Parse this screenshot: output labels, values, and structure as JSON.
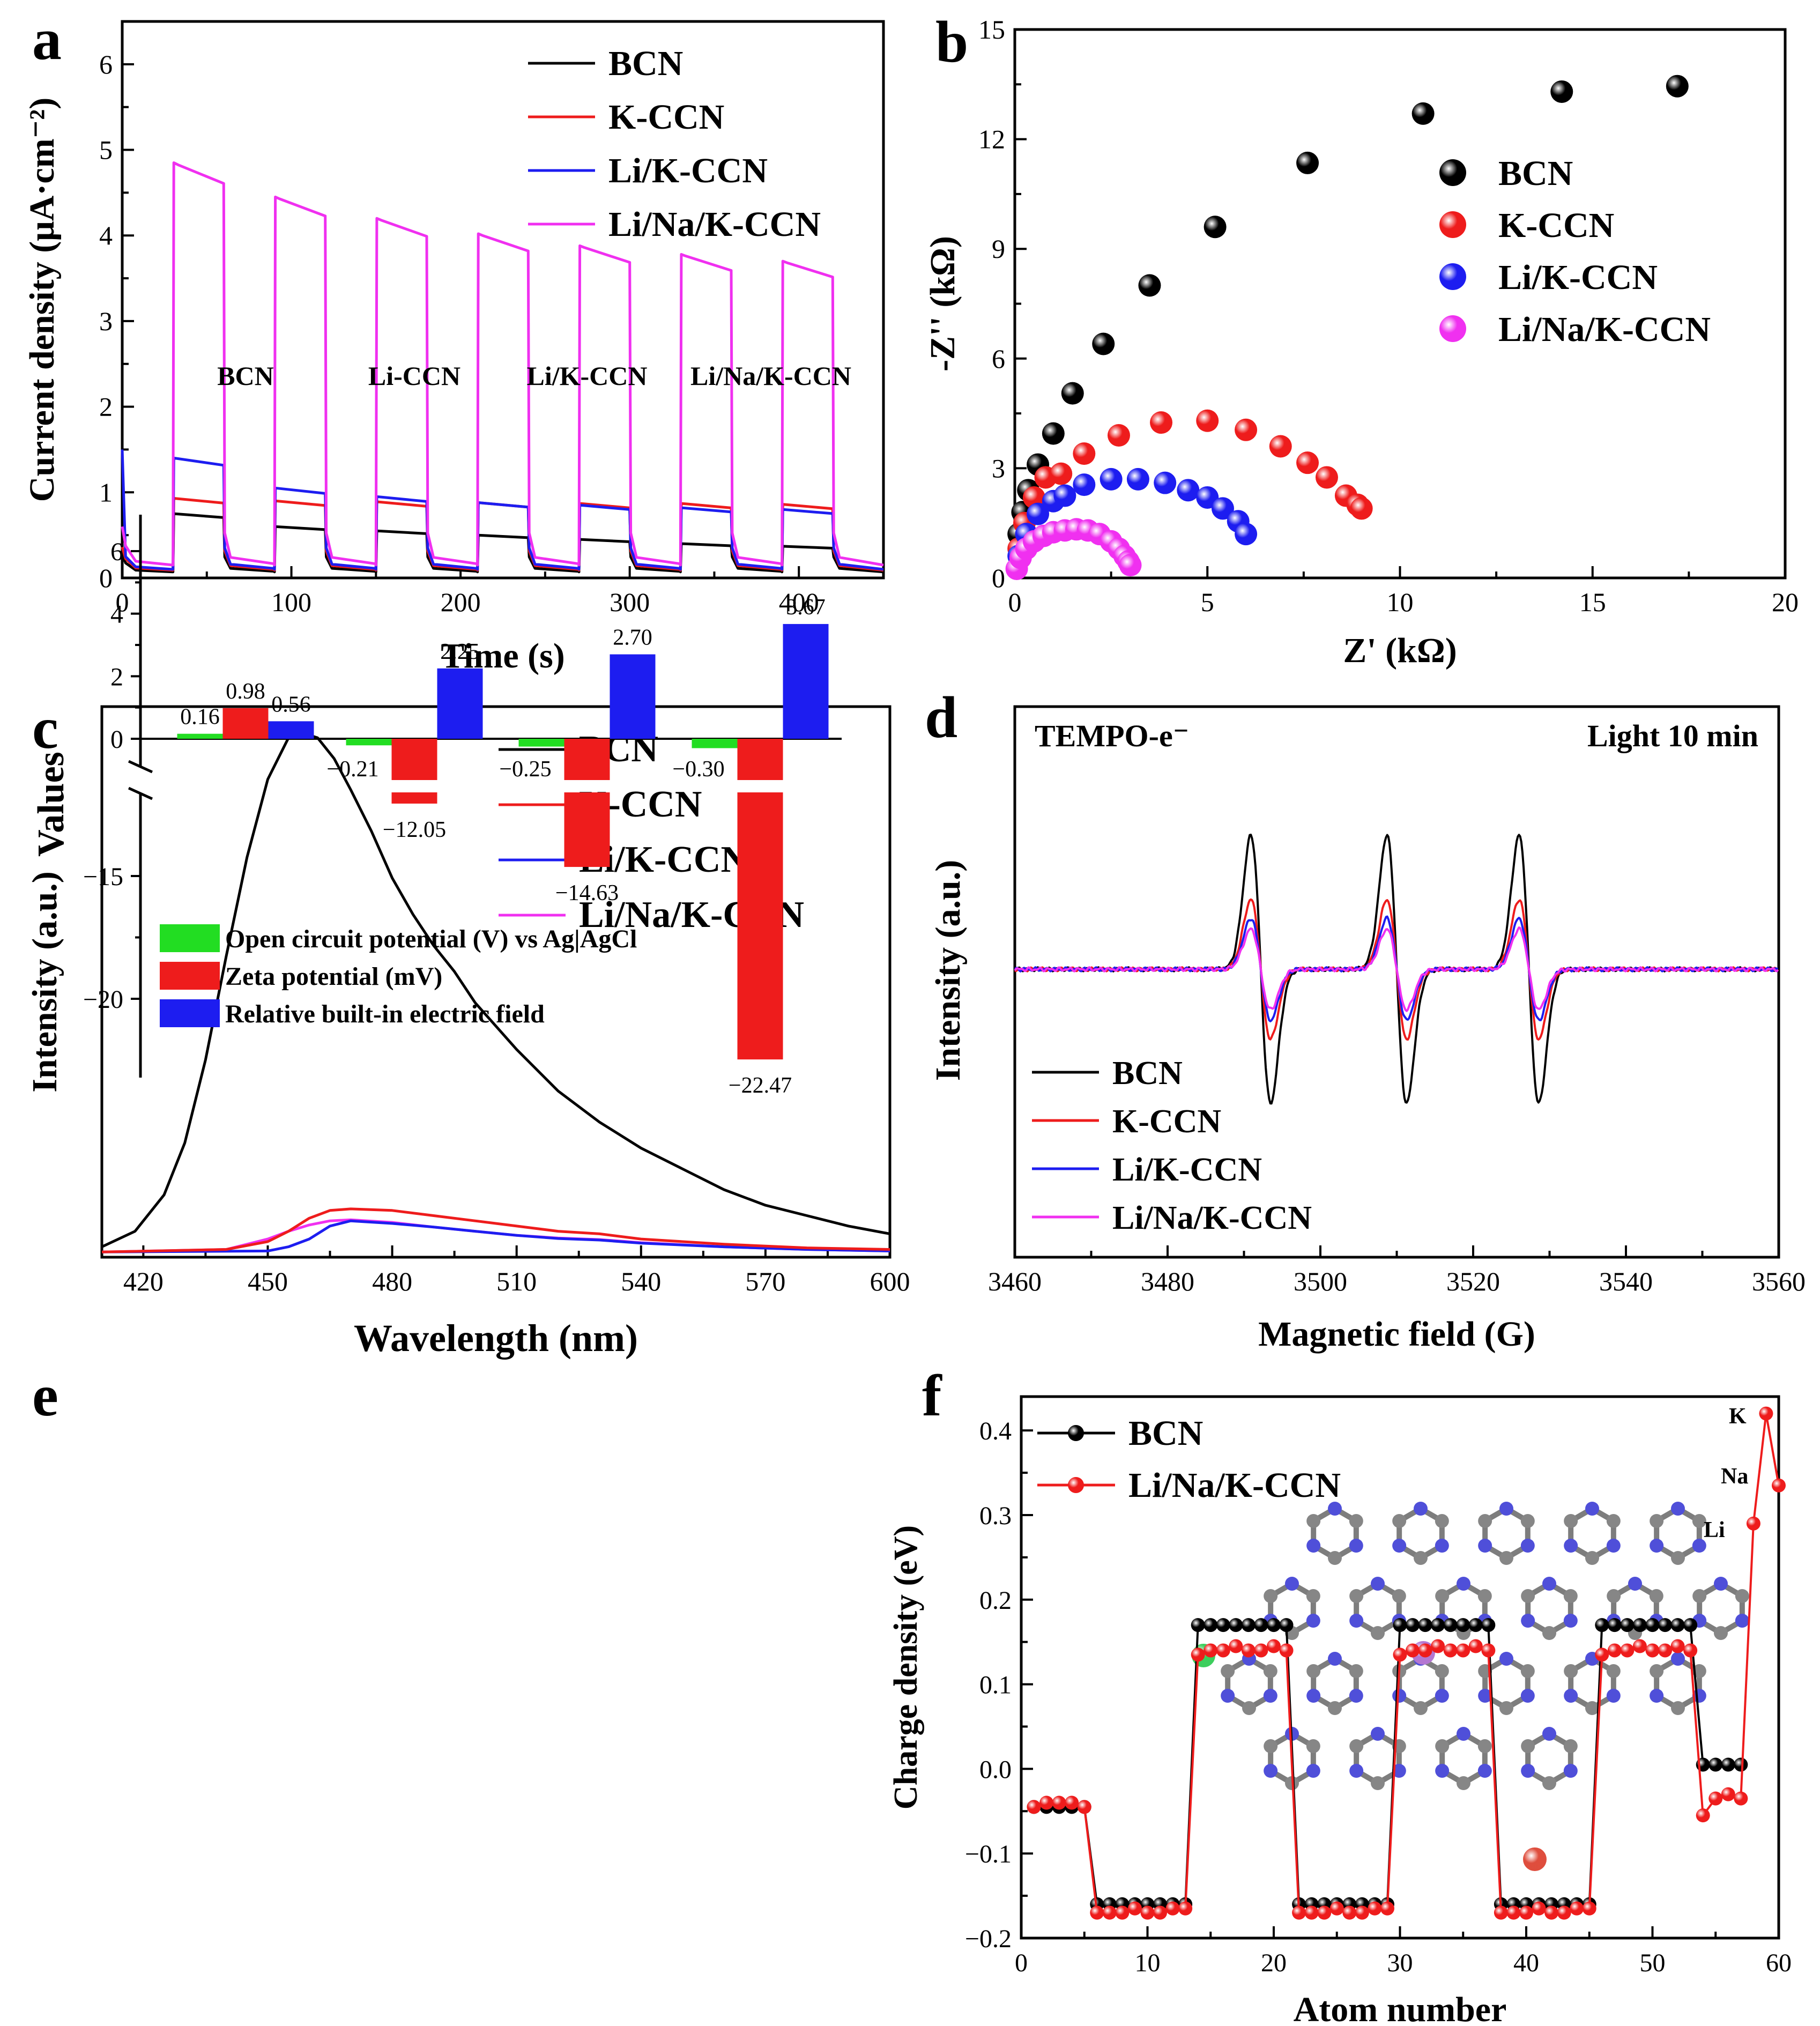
{
  "colors": {
    "black": "#000000",
    "red": "#ee1c1c",
    "blue": "#1d1df0",
    "magenta": "#f030f0",
    "green": "#22dd22",
    "atom_c": "#808080",
    "atom_n": "#4646d8",
    "atom_k": "#33cc55",
    "atom_na": "#b070d0",
    "atom_li": "#dd4433"
  },
  "chart_data": [
    {
      "panel": "a",
      "type": "line",
      "xlabel": "Time (s)",
      "ylabel": "Current density (μA·cm⁻²)",
      "xlim": [
        0,
        450
      ],
      "ylim": [
        0,
        6.5
      ],
      "xticks": [
        "0",
        "100",
        "200",
        "300",
        "400"
      ],
      "yticks": [
        "0",
        "1",
        "2",
        "3",
        "4",
        "5",
        "6"
      ],
      "legend": [
        "BCN",
        "K-CCN",
        "Li/K-CCN",
        "Li/Na/K-CCN"
      ],
      "light_cycles": [
        [
          30,
          60
        ],
        [
          90,
          120
        ],
        [
          150,
          180
        ],
        [
          210,
          240
        ],
        [
          270,
          300
        ],
        [
          330,
          360
        ],
        [
          390,
          420
        ]
      ],
      "series": [
        {
          "name": "BCN",
          "on": [
            0.75,
            0.6,
            0.55,
            0.5,
            0.45,
            0.4,
            0.37
          ],
          "off": 0.07
        },
        {
          "name": "K-CCN",
          "on": [
            0.93,
            0.9,
            0.89,
            0.88,
            0.87,
            0.87,
            0.86
          ],
          "off": 0.09
        },
        {
          "name": "Li/K-CCN",
          "on": [
            1.4,
            1.05,
            0.95,
            0.88,
            0.85,
            0.82,
            0.8
          ],
          "off": 0.1,
          "start": 1.5
        },
        {
          "name": "Li/Na/K-CCN",
          "on": [
            4.85,
            4.45,
            4.2,
            4.02,
            3.88,
            3.78,
            3.7
          ],
          "off": 0.15
        }
      ]
    },
    {
      "panel": "b",
      "type": "scatter",
      "xlabel": "Z' (kΩ)",
      "ylabel": "-Z'' (kΩ)",
      "xlim": [
        0,
        20
      ],
      "ylim": [
        0,
        15
      ],
      "xticks": [
        "0",
        "5",
        "10",
        "15",
        "20"
      ],
      "yticks": [
        "0",
        "3",
        "6",
        "9",
        "12",
        "15"
      ],
      "legend": [
        "BCN",
        "K-CCN",
        "Li/K-CCN",
        "Li/Na/K-CCN"
      ],
      "series": [
        {
          "name": "BCN",
          "points": [
            [
              0.1,
              1.2
            ],
            [
              0.2,
              1.8
            ],
            [
              0.35,
              2.4
            ],
            [
              0.6,
              3.1
            ],
            [
              1.0,
              3.95
            ],
            [
              1.5,
              5.05
            ],
            [
              2.3,
              6.4
            ],
            [
              3.5,
              8.0
            ],
            [
              5.2,
              9.6
            ],
            [
              7.6,
              11.35
            ],
            [
              10.6,
              12.7
            ],
            [
              14.2,
              13.3
            ],
            [
              17.2,
              13.45
            ]
          ]
        },
        {
          "name": "K-CCN",
          "points": [
            [
              0.1,
              0.8
            ],
            [
              0.25,
              1.5
            ],
            [
              0.5,
              2.2
            ],
            [
              0.8,
              2.75
            ],
            [
              1.2,
              2.85
            ],
            [
              1.8,
              3.4
            ],
            [
              2.7,
              3.9
            ],
            [
              3.8,
              4.25
            ],
            [
              5.0,
              4.3
            ],
            [
              6.0,
              4.05
            ],
            [
              6.9,
              3.6
            ],
            [
              7.6,
              3.15
            ],
            [
              8.1,
              2.75
            ],
            [
              8.6,
              2.25
            ],
            [
              8.9,
              2.0
            ],
            [
              9.0,
              1.9
            ]
          ]
        },
        {
          "name": "Li/K-CCN",
          "points": [
            [
              0.1,
              0.6
            ],
            [
              0.3,
              1.2
            ],
            [
              0.6,
              1.75
            ],
            [
              1.0,
              2.1
            ],
            [
              1.3,
              2.25
            ],
            [
              1.8,
              2.55
            ],
            [
              2.5,
              2.7
            ],
            [
              3.2,
              2.7
            ],
            [
              3.9,
              2.6
            ],
            [
              4.5,
              2.4
            ],
            [
              5.0,
              2.2
            ],
            [
              5.4,
              1.9
            ],
            [
              5.8,
              1.55
            ],
            [
              6.0,
              1.2
            ]
          ]
        },
        {
          "name": "Li/Na/K-CCN",
          "points": [
            [
              0.05,
              0.25
            ],
            [
              0.15,
              0.55
            ],
            [
              0.3,
              0.8
            ],
            [
              0.5,
              1.0
            ],
            [
              0.75,
              1.15
            ],
            [
              1.0,
              1.25
            ],
            [
              1.3,
              1.3
            ],
            [
              1.6,
              1.33
            ],
            [
              1.9,
              1.3
            ],
            [
              2.2,
              1.2
            ],
            [
              2.5,
              1.0
            ],
            [
              2.7,
              0.8
            ],
            [
              2.85,
              0.6
            ],
            [
              2.95,
              0.45
            ],
            [
              3.0,
              0.35
            ]
          ]
        }
      ]
    },
    {
      "panel": "c",
      "type": "line",
      "xlabel": "Wavelength (nm)",
      "ylabel": "Intensity (a.u.)",
      "xlim": [
        410,
        600
      ],
      "ylim": [
        0,
        1.06
      ],
      "xticks": [
        "420",
        "450",
        "480",
        "510",
        "540",
        "570",
        "600"
      ],
      "legend": [
        "BCN",
        "K-CCN",
        "Li/K-CCN",
        "Li/Na/K-CCN"
      ],
      "series": [
        {
          "name": "BCN",
          "x": [
            410,
            418,
            425,
            430,
            435,
            440,
            445,
            450,
            455,
            458,
            462,
            466,
            470,
            475,
            480,
            485,
            490,
            495,
            500,
            510,
            520,
            530,
            540,
            550,
            560,
            570,
            580,
            590,
            600
          ],
          "y": [
            0.02,
            0.05,
            0.12,
            0.22,
            0.38,
            0.58,
            0.77,
            0.92,
            1.0,
            1.01,
            1.0,
            0.96,
            0.9,
            0.82,
            0.73,
            0.66,
            0.6,
            0.55,
            0.49,
            0.4,
            0.32,
            0.26,
            0.21,
            0.17,
            0.13,
            0.1,
            0.08,
            0.06,
            0.045
          ]
        },
        {
          "name": "K-CCN",
          "x": [
            410,
            440,
            450,
            455,
            460,
            465,
            470,
            480,
            490,
            500,
            510,
            520,
            530,
            540,
            560,
            580,
            600
          ],
          "y": [
            0.01,
            0.015,
            0.03,
            0.05,
            0.075,
            0.09,
            0.093,
            0.09,
            0.08,
            0.07,
            0.06,
            0.05,
            0.045,
            0.035,
            0.025,
            0.018,
            0.015
          ]
        },
        {
          "name": "Li/K-CCN",
          "x": [
            410,
            450,
            455,
            460,
            465,
            470,
            480,
            490,
            500,
            510,
            520,
            530,
            540,
            560,
            580,
            600
          ],
          "y": [
            0.01,
            0.012,
            0.02,
            0.035,
            0.06,
            0.07,
            0.065,
            0.058,
            0.05,
            0.042,
            0.036,
            0.033,
            0.027,
            0.02,
            0.015,
            0.012
          ]
        },
        {
          "name": "Li/Na/K-CCN",
          "x": [
            410,
            440,
            450,
            455,
            460,
            465,
            470,
            480,
            490,
            500,
            510,
            520,
            530,
            540,
            560,
            580,
            600
          ],
          "y": [
            0.01,
            0.015,
            0.035,
            0.05,
            0.062,
            0.07,
            0.072,
            0.067,
            0.058,
            0.05,
            0.042,
            0.037,
            0.034,
            0.028,
            0.02,
            0.015,
            0.012
          ]
        }
      ]
    },
    {
      "panel": "d",
      "type": "line",
      "xlabel": "Magnetic field (G)",
      "ylabel": "Intensity (a.u.)",
      "title_left": "TEMPO-e⁻",
      "title_right": "Light 10 min",
      "xlim": [
        3460,
        3560
      ],
      "xticks": [
        "3460",
        "3480",
        "3500",
        "3520",
        "3540",
        "3560"
      ],
      "legend": [
        "BCN",
        "K-CCN",
        "Li/K-CCN",
        "Li/Na/K-CCN"
      ],
      "line_centers": [
        3492.2,
        3510.0,
        3527.3
      ],
      "series": [
        {
          "name": "BCN",
          "amplitude": 1.0
        },
        {
          "name": "K-CCN",
          "amplitude": 0.52
        },
        {
          "name": "Li/K-CCN",
          "amplitude": 0.38
        },
        {
          "name": "Li/Na/K-CCN",
          "amplitude": 0.3
        }
      ]
    },
    {
      "panel": "e",
      "type": "bar",
      "ylabel": "Values",
      "yticks_upper": [
        "0",
        "2",
        "4",
        "6"
      ],
      "yticks_lower": [
        "-15",
        "-20"
      ],
      "categories": [
        "BCN",
        "Li-CCN",
        "Li/K-CCN",
        "Li/Na/K-CCN"
      ],
      "series": [
        {
          "name": "Open circuit potential (V) vs Ag|AgCl",
          "values": [
            0.16,
            -0.21,
            -0.25,
            -0.3
          ],
          "labels": [
            "0.16",
            "−0.21",
            "−0.25",
            "−0.30"
          ]
        },
        {
          "name": "Zeta potential (mV)",
          "values": [
            0.98,
            -12.05,
            -14.63,
            -22.47
          ],
          "labels": [
            "0.98",
            "−12.05",
            "−14.63",
            "−22.47"
          ]
        },
        {
          "name": "Relative built-in electric field",
          "values": [
            0.56,
            2.25,
            2.7,
            3.67
          ],
          "labels": [
            "0.56",
            "2.25",
            "2.70",
            "3.67"
          ]
        }
      ],
      "ylabel_lower": [
        "−15",
        "−20"
      ]
    },
    {
      "panel": "f",
      "type": "line",
      "xlabel": "Atom number",
      "ylabel": "Charge density (eV)",
      "xlim": [
        0,
        60
      ],
      "ylim": [
        -0.2,
        0.44
      ],
      "xticks": [
        "0",
        "10",
        "20",
        "30",
        "40",
        "50",
        "60"
      ],
      "yticks": [
        "-0.2",
        "-0.1",
        "0.0",
        "0.1",
        "0.2",
        "0.3",
        "0.4"
      ],
      "legend": [
        "BCN",
        "Li/Na/K-CCN"
      ],
      "atom_labels": [
        "K",
        "Na",
        "Li"
      ],
      "series": [
        {
          "name": "BCN",
          "y": [
            -0.045,
            -0.045,
            -0.045,
            -0.045,
            -0.045,
            -0.16,
            -0.16,
            -0.16,
            -0.16,
            -0.16,
            -0.16,
            -0.16,
            -0.16,
            0.17,
            0.17,
            0.17,
            0.17,
            0.17,
            0.17,
            0.17,
            0.17,
            -0.16,
            -0.16,
            -0.16,
            -0.16,
            -0.16,
            -0.16,
            -0.16,
            -0.16,
            0.17,
            0.17,
            0.17,
            0.17,
            0.17,
            0.17,
            0.17,
            0.17,
            -0.16,
            -0.16,
            -0.16,
            -0.16,
            -0.16,
            -0.16,
            -0.16,
            -0.16,
            0.17,
            0.17,
            0.17,
            0.17,
            0.17,
            0.17,
            0.17,
            0.17,
            0.005,
            0.005,
            0.005,
            0.005
          ]
        },
        {
          "name": "Li/Na/K-CCN",
          "y": [
            -0.045,
            -0.04,
            -0.04,
            -0.04,
            -0.045,
            -0.17,
            -0.17,
            -0.17,
            -0.165,
            -0.17,
            -0.17,
            -0.165,
            -0.165,
            0.135,
            0.14,
            0.14,
            0.145,
            0.14,
            0.14,
            0.145,
            0.14,
            -0.17,
            -0.17,
            -0.17,
            -0.165,
            -0.17,
            -0.17,
            -0.165,
            -0.165,
            0.135,
            0.14,
            0.14,
            0.145,
            0.14,
            0.14,
            0.145,
            0.14,
            -0.17,
            -0.17,
            -0.17,
            -0.165,
            -0.17,
            -0.17,
            -0.165,
            -0.165,
            0.135,
            0.14,
            0.14,
            0.145,
            0.14,
            0.14,
            0.145,
            0.14,
            -0.055,
            -0.035,
            -0.03,
            -0.035,
            0.29,
            0.42,
            0.335
          ]
        }
      ]
    }
  ],
  "panel_letters": [
    "a",
    "b",
    "c",
    "d",
    "e",
    "f"
  ]
}
